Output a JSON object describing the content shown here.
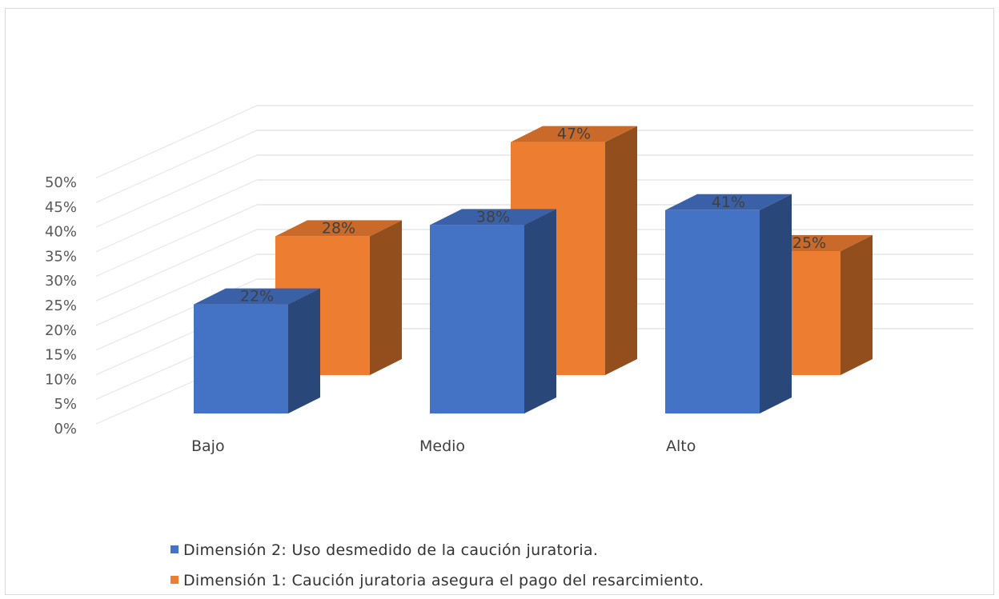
{
  "chart_data": {
    "type": "bar",
    "categories": [
      "Bajo",
      "Medio",
      "Alto"
    ],
    "series": [
      {
        "name": "Dimensión 2: Uso desmedido de la caución juratoria.",
        "values": [
          22,
          38,
          41
        ],
        "labels": [
          "22%",
          "38%",
          "41%"
        ],
        "color": "#4472C4"
      },
      {
        "name": "Dimensión 1: Caución juratoria asegura el pago del resarcimiento.",
        "values": [
          28,
          47,
          25
        ],
        "labels": [
          "28%",
          "47%",
          "25%"
        ],
        "color": "#ED7D31"
      }
    ],
    "ylim": [
      0,
      50
    ],
    "yticks": [
      "0%",
      "5%",
      "10%",
      "15%",
      "20%",
      "25%",
      "30%",
      "35%",
      "40%",
      "45%",
      "50%"
    ],
    "ytick_values": [
      0,
      5,
      10,
      15,
      20,
      25,
      30,
      35,
      40,
      45,
      50
    ],
    "grid": true,
    "three_d": true,
    "legend_position": "bottom"
  }
}
